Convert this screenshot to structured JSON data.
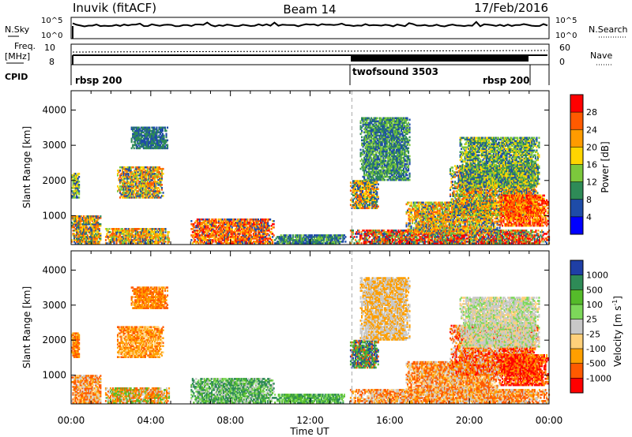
{
  "header": {
    "station": "Inuvik (fitACF)",
    "beam": "Beam 14",
    "date": "17/Feb/2016"
  },
  "top_panels": {
    "nsky_label": "N.Sky",
    "nsky_ticks": [
      "10^5",
      "10^0"
    ],
    "nsearch_label": "N.Search",
    "nsearch_ticks": [
      "10^5",
      "10^0"
    ],
    "freq_label_1": "Freq.",
    "freq_label_2": "[MHz]",
    "freq_ticks": [
      "10",
      "8"
    ],
    "nave_label": "Nave",
    "nave_ticks": [
      "60",
      "0"
    ],
    "cpid_label": "CPID",
    "cpid_segments": [
      {
        "name": "rbsp 200",
        "start_h": 0.0,
        "end_h": 14.1
      },
      {
        "name": "twofsound 3503",
        "start_h": 14.1,
        "end_h": 23.1
      },
      {
        "name": "rbsp 200",
        "start_h": 23.1,
        "end_h": 24.0
      }
    ]
  },
  "chart_data": [
    {
      "type": "heatmap",
      "name": "power",
      "ylabel": "Slant Range [km]",
      "xlabel": "",
      "xlim": [
        0,
        24
      ],
      "ylim": [
        180,
        4550
      ],
      "yticks": [
        1000,
        2000,
        3000,
        4000
      ],
      "colorbar_label": "Power [dB]",
      "colorbar_ticks": [
        "28",
        "24",
        "20",
        "16",
        "12",
        "8",
        "4"
      ],
      "colorbar_colors": [
        "#ff0000",
        "#ff5a00",
        "#ff9b00",
        "#ffd500",
        "#7cc83c",
        "#2e8b57",
        "#1e4ca8",
        "#0000ff"
      ],
      "regions": [
        {
          "t0": 0.0,
          "t1": 1.5,
          "r0": 200,
          "r1": 1000,
          "c": [
            1,
            2,
            3,
            5,
            6
          ]
        },
        {
          "t0": 0.0,
          "t1": 0.4,
          "r0": 1500,
          "r1": 2200,
          "c": [
            3,
            4,
            6
          ]
        },
        {
          "t0": 1.7,
          "t1": 4.9,
          "r0": 200,
          "r1": 650,
          "c": [
            1,
            2,
            3,
            4,
            6
          ]
        },
        {
          "t0": 2.3,
          "t1": 4.6,
          "r0": 1500,
          "r1": 2400,
          "c": [
            1,
            2,
            3,
            4,
            6
          ]
        },
        {
          "t0": 3.0,
          "t1": 4.8,
          "r0": 2900,
          "r1": 3500,
          "c": [
            6,
            5
          ]
        },
        {
          "t0": 6.0,
          "t1": 10.2,
          "r0": 200,
          "r1": 900,
          "c": [
            0,
            1,
            1,
            2,
            3,
            6
          ]
        },
        {
          "t0": 10.2,
          "t1": 13.8,
          "r0": 200,
          "r1": 450,
          "c": [
            6,
            5,
            4
          ]
        },
        {
          "t0": 14.0,
          "t1": 15.4,
          "r0": 1200,
          "r1": 2000,
          "c": [
            1,
            2,
            3,
            5,
            6
          ]
        },
        {
          "t0": 14.0,
          "t1": 24.0,
          "r0": 200,
          "r1": 600,
          "c": [
            0,
            0,
            1,
            2,
            4,
            5,
            6
          ]
        },
        {
          "t0": 16.8,
          "t1": 21.5,
          "r0": 500,
          "r1": 1400,
          "c": [
            1,
            2,
            3,
            4,
            6
          ]
        },
        {
          "t0": 19.0,
          "t1": 23.4,
          "r0": 1000,
          "r1": 2400,
          "c": [
            1,
            2,
            3,
            4,
            5,
            6
          ]
        },
        {
          "t0": 21.5,
          "t1": 23.9,
          "r0": 700,
          "r1": 1600,
          "c": [
            0,
            0,
            1,
            1,
            2,
            3
          ]
        },
        {
          "t0": 19.5,
          "t1": 23.5,
          "r0": 1800,
          "r1": 3200,
          "c": [
            3,
            4,
            5,
            6
          ]
        },
        {
          "t0": 14.5,
          "t1": 17.0,
          "r0": 2000,
          "r1": 3800,
          "c": [
            5,
            6,
            4
          ]
        }
      ]
    },
    {
      "type": "heatmap",
      "name": "velocity",
      "ylabel": "Slant Range [km]",
      "xlabel": "Time UT",
      "xlim": [
        0,
        24
      ],
      "ylim": [
        180,
        4550
      ],
      "yticks": [
        1000,
        2000,
        3000,
        4000
      ],
      "xticks": [
        "00:00",
        "04:00",
        "08:00",
        "12:00",
        "16:00",
        "20:00",
        "00:00"
      ],
      "colorbar_label": "Velocity [m s",
      "colorbar_label_sup": "-1",
      "colorbar_ticks": [
        "1000",
        "500",
        "100",
        "25",
        "-25",
        "-100",
        "-500",
        "-1000"
      ],
      "colorbar_colors": [
        "#1f3fa6",
        "#2e8b57",
        "#55bb2a",
        "#7dd85a",
        "#c8c8c8",
        "#ffd07a",
        "#ff9f00",
        "#ff5a00",
        "#ff0000"
      ],
      "regions": [
        {
          "t0": 0.0,
          "t1": 1.5,
          "r0": 200,
          "r1": 1000,
          "c": [
            6,
            7,
            7,
            5,
            4
          ]
        },
        {
          "t0": 0.0,
          "t1": 0.4,
          "r0": 1500,
          "r1": 2200,
          "c": [
            6,
            7
          ]
        },
        {
          "t0": 1.7,
          "t1": 4.9,
          "r0": 200,
          "r1": 650,
          "c": [
            6,
            7,
            4,
            2
          ]
        },
        {
          "t0": 2.3,
          "t1": 4.6,
          "r0": 1500,
          "r1": 2400,
          "c": [
            6,
            7,
            6,
            5
          ]
        },
        {
          "t0": 3.0,
          "t1": 4.8,
          "r0": 2900,
          "r1": 3500,
          "c": [
            6,
            7
          ]
        },
        {
          "t0": 6.0,
          "t1": 10.2,
          "r0": 200,
          "r1": 900,
          "c": [
            1,
            1,
            2,
            3,
            4
          ]
        },
        {
          "t0": 10.2,
          "t1": 13.8,
          "r0": 200,
          "r1": 450,
          "c": [
            1,
            2,
            3
          ]
        },
        {
          "t0": 14.0,
          "t1": 15.4,
          "r0": 1200,
          "r1": 2000,
          "c": [
            0,
            1,
            2,
            7
          ]
        },
        {
          "t0": 14.0,
          "t1": 24.0,
          "r0": 200,
          "r1": 600,
          "c": [
            6,
            7,
            7,
            5,
            4
          ]
        },
        {
          "t0": 16.8,
          "t1": 21.5,
          "r0": 500,
          "r1": 1400,
          "c": [
            6,
            7,
            7,
            5,
            4
          ]
        },
        {
          "t0": 19.0,
          "t1": 23.4,
          "r0": 1000,
          "r1": 2400,
          "c": [
            6,
            7,
            7,
            8,
            4
          ]
        },
        {
          "t0": 21.5,
          "t1": 23.9,
          "r0": 700,
          "r1": 1600,
          "c": [
            7,
            8,
            8,
            6
          ]
        },
        {
          "t0": 19.5,
          "t1": 23.5,
          "r0": 1800,
          "r1": 3200,
          "c": [
            4,
            4,
            5,
            3
          ]
        },
        {
          "t0": 14.5,
          "t1": 17.0,
          "r0": 2000,
          "r1": 3800,
          "c": [
            4,
            6
          ]
        }
      ]
    }
  ]
}
